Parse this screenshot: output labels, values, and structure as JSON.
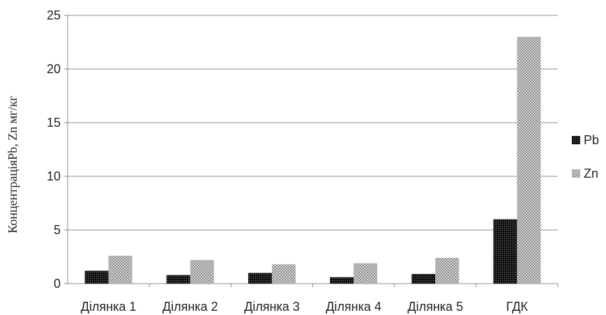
{
  "chart_data": {
    "type": "bar",
    "categories": [
      "Ділянка 1",
      "Ділянка 2",
      "Ділянка 3",
      "Ділянка  4",
      "Ділянка 5",
      "ГДК"
    ],
    "series": [
      {
        "name": "Pb",
        "values": [
          1.2,
          0.8,
          1.0,
          0.6,
          0.9,
          6.0
        ],
        "pattern": "dots-dark"
      },
      {
        "name": "Zn",
        "values": [
          2.6,
          2.2,
          1.8,
          1.9,
          2.4,
          23.0
        ],
        "pattern": "checker-light"
      }
    ],
    "ylabel": "КонцентраціяPb, Zn  мг/кг",
    "ylim": [
      0,
      25
    ],
    "yticks": [
      0,
      5,
      10,
      15,
      20,
      25
    ],
    "grid": true,
    "legend_position": "right"
  }
}
